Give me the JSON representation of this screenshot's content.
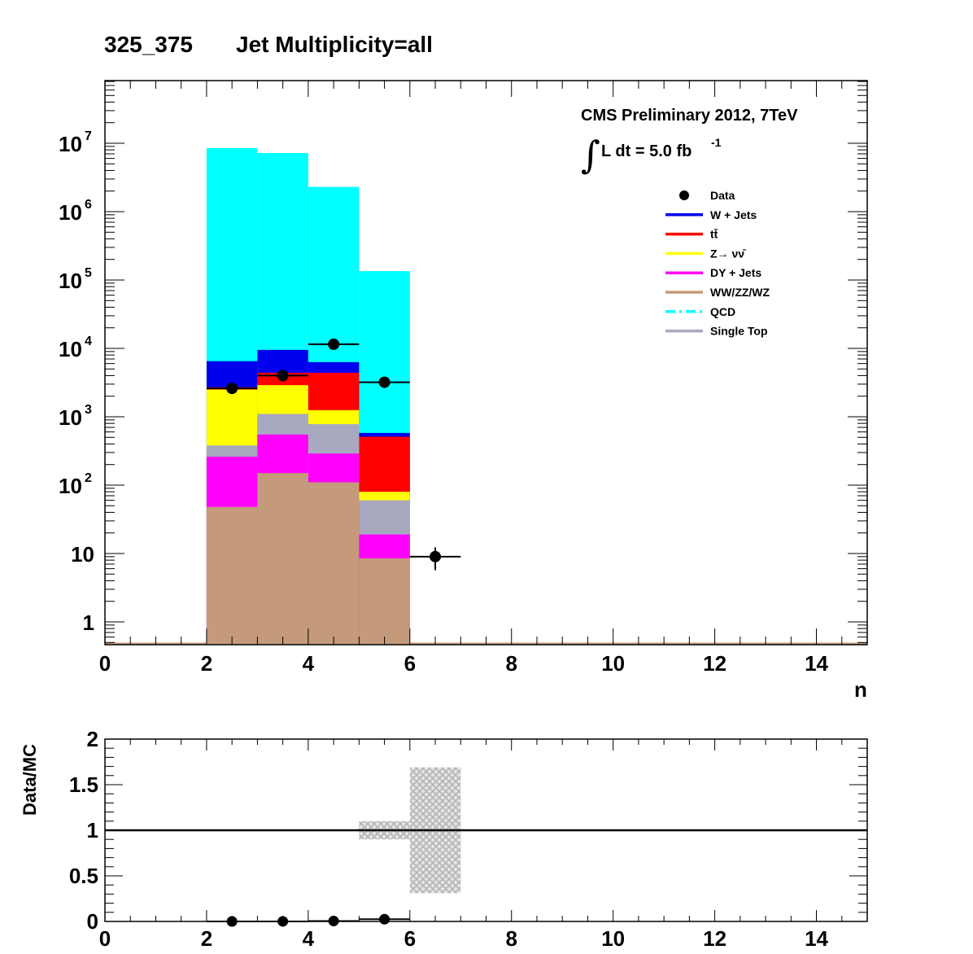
{
  "header": {
    "region": "325_375",
    "title": "Jet Multiplicity=all"
  },
  "annotations": {
    "experiment": "CMS Preliminary 2012, 7TeV",
    "integral_sign": "∫",
    "lumi_prefix": "L dt = 5.0 fb",
    "lumi_exp": "-1"
  },
  "legend": [
    {
      "name": "Data",
      "style": "marker",
      "color": "#000000"
    },
    {
      "name": "W + Jets",
      "style": "line",
      "color": "#0000ee"
    },
    {
      "name": "tt̄",
      "style": "line",
      "color": "#ff0000"
    },
    {
      "name": "Z→ νν̄",
      "style": "line",
      "color": "#ffff00"
    },
    {
      "name": "DY + Jets",
      "style": "line",
      "color": "#ff00ff"
    },
    {
      "name": "WW/ZZ/WZ",
      "style": "line",
      "color": "#c49a7a"
    },
    {
      "name": "QCD",
      "style": "dashdot",
      "color": "#00ffff"
    },
    {
      "name": "Single Top",
      "style": "line",
      "color": "#a8a8c0"
    }
  ],
  "chart_data": [
    {
      "type": "bar",
      "subtype": "stacked-histogram-log",
      "title": "325_375    Jet Multiplicity=all",
      "xlabel": "n",
      "ylabel": "",
      "xlim": [
        0,
        15
      ],
      "ylim_log": [
        0.5,
        80000000
      ],
      "bin_edges": [
        2,
        3,
        4,
        5,
        6
      ],
      "stack_order": [
        "WW/ZZ/WZ",
        "DY + Jets",
        "Single Top",
        "Z→ νν̄",
        "tt̄",
        "W + Jets",
        "QCD"
      ],
      "stack_cumulative": [
        {
          "name": "WW/ZZ/WZ",
          "color": "#c49a7a",
          "values": [
            48,
            150,
            110,
            8.5
          ]
        },
        {
          "name": "DY + Jets",
          "color": "#ff00ff",
          "values": [
            260,
            550,
            290,
            19
          ]
        },
        {
          "name": "Single Top",
          "color": "#a8a8c0",
          "values": [
            380,
            1100,
            780,
            60
          ]
        },
        {
          "name": "Z→ νν̄",
          "color": "#ffff00",
          "values": [
            2500,
            2900,
            1250,
            80
          ]
        },
        {
          "name": "tt̄",
          "color": "#ff0000",
          "values": [
            2700,
            4400,
            4400,
            510
          ]
        },
        {
          "name": "W + Jets",
          "color": "#0000ee",
          "values": [
            6500,
            9500,
            6300,
            580
          ]
        },
        {
          "name": "QCD",
          "color": "#00ffff",
          "values": [
            8500000,
            7200000,
            2300000,
            135000
          ]
        }
      ],
      "data_points": {
        "name": "Data",
        "x": [
          2.5,
          3.5,
          4.5,
          5.5,
          6.5
        ],
        "xerr": 0.5,
        "y": [
          2600,
          4000,
          11500,
          3200,
          9
        ],
        "yerr_low": [
          0,
          0,
          0,
          0,
          3.3
        ],
        "yerr_high": [
          0,
          0,
          0,
          0,
          3.3
        ]
      },
      "xticks": [
        0,
        2,
        4,
        6,
        8,
        10,
        12,
        14
      ],
      "yticks": [
        {
          "base": "1",
          "exp": ""
        },
        {
          "base": "10",
          "exp": ""
        },
        {
          "base": "10",
          "exp": "2"
        },
        {
          "base": "10",
          "exp": "3"
        },
        {
          "base": "10",
          "exp": "4"
        },
        {
          "base": "10",
          "exp": "5"
        },
        {
          "base": "10",
          "exp": "6"
        },
        {
          "base": "10",
          "exp": "7"
        }
      ],
      "grid": false,
      "legend_position": "top-right"
    },
    {
      "type": "scatter",
      "subtype": "ratio",
      "ylabel": "Data/MC",
      "xlabel": "",
      "xlim": [
        0,
        15
      ],
      "ylim": [
        0,
        2
      ],
      "reference_line": 1,
      "points": {
        "x": [
          2.5,
          3.5,
          4.5,
          5.5
        ],
        "xerr": 0.5,
        "y": [
          0.0003,
          0.0005,
          0.005,
          0.024
        ],
        "yerr": [
          0,
          0,
          0,
          0.035
        ]
      },
      "uncertainty_band": {
        "bin_edges": [
          3,
          4,
          5,
          6,
          7
        ],
        "low": [
          0.997,
          0.995,
          0.9,
          0.31
        ],
        "high": [
          1.003,
          1.005,
          1.1,
          1.69
        ]
      },
      "xticks": [
        0,
        2,
        4,
        6,
        8,
        10,
        12,
        14
      ],
      "yticks": [
        "0",
        "0.5",
        "1",
        "1.5",
        "2"
      ],
      "grid": false
    }
  ]
}
